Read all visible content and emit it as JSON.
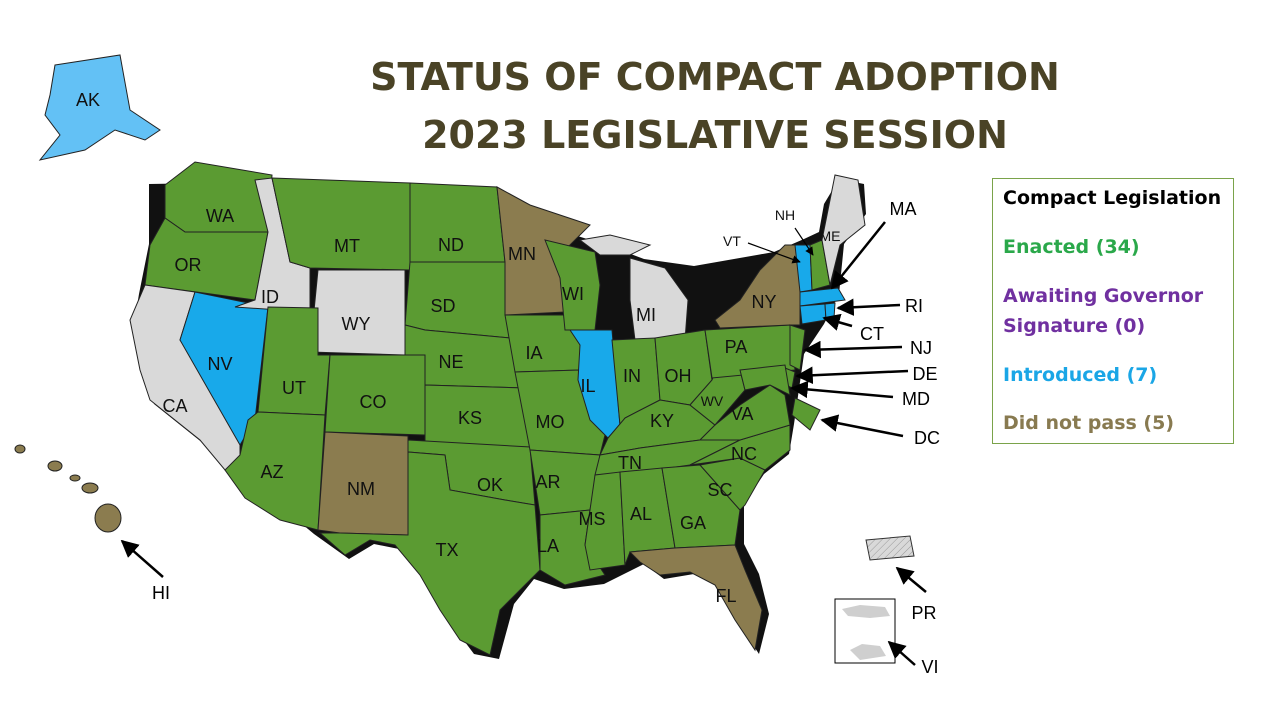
{
  "title": {
    "line1": "STATUS OF COMPACT ADOPTION",
    "line2": "2023 LEGISLATIVE SESSION"
  },
  "legend": {
    "heading": "Compact Legislation",
    "enacted": "Enacted (34)",
    "awaiting_line1": "Awaiting Governor",
    "awaiting_line2": "Signature (0)",
    "introduced": "Introduced (7)",
    "not_passed": "Did not pass (5)"
  },
  "colors": {
    "enacted": "#5b9b32",
    "introduced": "#18a9ea",
    "introduced_ak": "#63c1f5",
    "not_passed": "#8b7c4f",
    "none": "#d9d9d9",
    "heading": "#000000",
    "enacted_text": "#2aa84a",
    "awaiting_text": "#7030a0",
    "introduced_text": "#1aa6e6",
    "not_passed_text": "#887a50",
    "title": "#4a4326"
  },
  "states": {
    "WA": "WA",
    "OR": "OR",
    "CA": "CA",
    "NV": "NV",
    "ID": "ID",
    "MT": "MT",
    "WY": "WY",
    "UT": "UT",
    "AZ": "AZ",
    "CO": "CO",
    "NM": "NM",
    "ND": "ND",
    "SD": "SD",
    "NE": "NE",
    "KS": "KS",
    "OK": "OK",
    "TX": "TX",
    "MN": "MN",
    "IA": "IA",
    "MO": "MO",
    "AR": "AR",
    "LA": "LA",
    "WI": "WI",
    "IL": "IL",
    "MI": "MI",
    "IN": "IN",
    "OH": "OH",
    "KY": "KY",
    "TN": "TN",
    "MS": "MS",
    "AL": "AL",
    "GA": "GA",
    "FL": "FL",
    "SC": "SC",
    "NC": "NC",
    "VA": "VA",
    "WV": "WV",
    "PA": "PA",
    "NY": "NY",
    "ME": "ME",
    "AK": "AK"
  },
  "callouts": {
    "NH": "NH",
    "VT": "VT",
    "MA": "MA",
    "RI": "RI",
    "CT": "CT",
    "NJ": "NJ",
    "DE": "DE",
    "MD": "MD",
    "DC": "DC",
    "HI": "HI",
    "PR": "PR",
    "VI": "VI"
  }
}
